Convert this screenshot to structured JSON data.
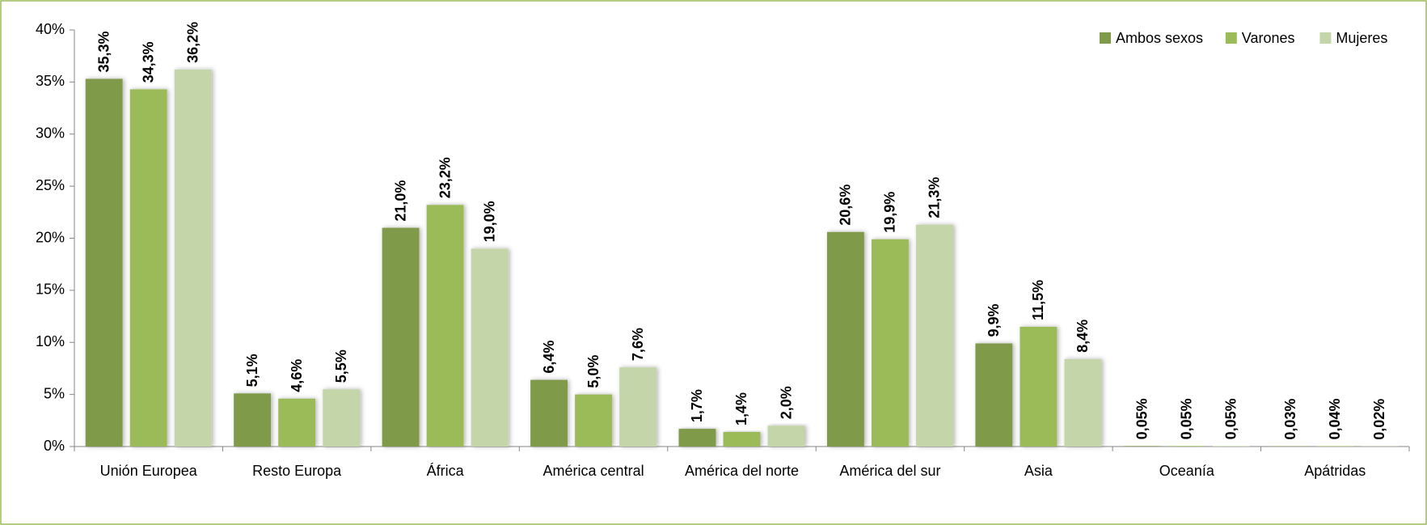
{
  "chart_data": {
    "type": "bar",
    "categories": [
      "Unión Europea",
      "Resto Europa",
      "África",
      "América central",
      "América del norte",
      "América del sur",
      "Asia",
      "Oceanía",
      "Apátridas"
    ],
    "series": [
      {
        "name": "Ambos sexos",
        "color": "#7f9a48",
        "values": [
          35.3,
          5.1,
          21.0,
          6.4,
          1.7,
          20.6,
          9.9,
          0.05,
          0.03
        ],
        "value_labels": [
          "35,3%",
          "5,1%",
          "21,0%",
          "6,4%",
          "1,7%",
          "20,6%",
          "9,9%",
          "0,05%",
          "0,03%"
        ]
      },
      {
        "name": "Varones",
        "color": "#9bbb59",
        "values": [
          34.3,
          4.6,
          23.2,
          5.0,
          1.4,
          19.9,
          11.5,
          0.05,
          0.04
        ],
        "value_labels": [
          "34,3%",
          "4,6%",
          "23,2%",
          "5,0%",
          "1,4%",
          "19,9%",
          "11,5%",
          "0,05%",
          "0,04%"
        ]
      },
      {
        "name": "Mujeres",
        "color": "#c4d6a9",
        "values": [
          36.2,
          5.5,
          19.0,
          7.6,
          2.0,
          21.3,
          8.4,
          0.05,
          0.02
        ],
        "value_labels": [
          "36,2%",
          "5,5%",
          "19,0%",
          "7,6%",
          "2,0%",
          "21,3%",
          "8,4%",
          "0,05%",
          "0,02%"
        ]
      }
    ],
    "ylim": [
      0,
      40
    ],
    "yticks": [
      {
        "value": 0,
        "label": "0%"
      },
      {
        "value": 5,
        "label": "5%"
      },
      {
        "value": 10,
        "label": "10%"
      },
      {
        "value": 15,
        "label": "15%"
      },
      {
        "value": 20,
        "label": "20%"
      },
      {
        "value": 25,
        "label": "25%"
      },
      {
        "value": 30,
        "label": "30%"
      },
      {
        "value": 35,
        "label": "35%"
      },
      {
        "value": 40,
        "label": "40%"
      }
    ],
    "legend": "top-right"
  }
}
